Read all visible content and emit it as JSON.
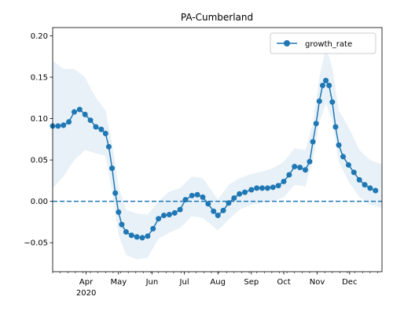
{
  "chart_data": {
    "type": "line",
    "title": "PA-Cumberland",
    "xlabel": "",
    "ylabel": "",
    "xlim": [
      "2020-03-01",
      "2020-12-31"
    ],
    "ylim": [
      -0.085,
      0.21
    ],
    "x_ticks": [
      {
        "date": "2020-04-01",
        "label": "Apr",
        "sublabel": "2020"
      },
      {
        "date": "2020-05-01",
        "label": "May"
      },
      {
        "date": "2020-06-01",
        "label": "Jun"
      },
      {
        "date": "2020-07-01",
        "label": "Jul"
      },
      {
        "date": "2020-08-01",
        "label": "Aug"
      },
      {
        "date": "2020-09-01",
        "label": "Sep"
      },
      {
        "date": "2020-10-01",
        "label": "Oct"
      },
      {
        "date": "2020-11-01",
        "label": "Nov"
      },
      {
        "date": "2020-12-01",
        "label": "Dec"
      }
    ],
    "y_ticks": [
      {
        "value": -0.05,
        "label": "−0.05"
      },
      {
        "value": 0.0,
        "label": "0.00"
      },
      {
        "value": 0.05,
        "label": "0.05"
      },
      {
        "value": 0.1,
        "label": "0.10"
      },
      {
        "value": 0.15,
        "label": "0.15"
      },
      {
        "value": 0.2,
        "label": "0.20"
      }
    ],
    "reference_line": {
      "y": 0.0,
      "style": "dashed",
      "color": "#1f77b4"
    },
    "legend": {
      "position": "top-right"
    },
    "series": [
      {
        "name": "growth_rate",
        "color": "#1f77b4",
        "marker": "circle",
        "points": [
          [
            "2020-03-01",
            0.091
          ],
          [
            "2020-03-06",
            0.091
          ],
          [
            "2020-03-11",
            0.092
          ],
          [
            "2020-03-16",
            0.096
          ],
          [
            "2020-03-21",
            0.108
          ],
          [
            "2020-03-26",
            0.111
          ],
          [
            "2020-03-31",
            0.105
          ],
          [
            "2020-04-05",
            0.098
          ],
          [
            "2020-04-10",
            0.09
          ],
          [
            "2020-04-15",
            0.087
          ],
          [
            "2020-04-19",
            0.082
          ],
          [
            "2020-04-22",
            0.066
          ],
          [
            "2020-04-25",
            0.04
          ],
          [
            "2020-04-28",
            0.01
          ],
          [
            "2020-05-01",
            -0.013
          ],
          [
            "2020-05-04",
            -0.028
          ],
          [
            "2020-05-08",
            -0.037
          ],
          [
            "2020-05-13",
            -0.041
          ],
          [
            "2020-05-18",
            -0.043
          ],
          [
            "2020-05-23",
            -0.044
          ],
          [
            "2020-05-28",
            -0.042
          ],
          [
            "2020-06-02",
            -0.033
          ],
          [
            "2020-06-07",
            -0.021
          ],
          [
            "2020-06-12",
            -0.017
          ],
          [
            "2020-06-17",
            -0.016
          ],
          [
            "2020-06-22",
            -0.014
          ],
          [
            "2020-06-27",
            -0.01
          ],
          [
            "2020-07-02",
            0.002
          ],
          [
            "2020-07-08",
            0.007
          ],
          [
            "2020-07-13",
            0.008
          ],
          [
            "2020-07-18",
            0.005
          ],
          [
            "2020-07-23",
            -0.003
          ],
          [
            "2020-07-28",
            -0.012
          ],
          [
            "2020-08-01",
            -0.017
          ],
          [
            "2020-08-06",
            -0.011
          ],
          [
            "2020-08-11",
            -0.002
          ],
          [
            "2020-08-16",
            0.004
          ],
          [
            "2020-08-21",
            0.009
          ],
          [
            "2020-08-26",
            0.011
          ],
          [
            "2020-09-01",
            0.014
          ],
          [
            "2020-09-06",
            0.016
          ],
          [
            "2020-09-11",
            0.016
          ],
          [
            "2020-09-16",
            0.016
          ],
          [
            "2020-09-21",
            0.017
          ],
          [
            "2020-09-26",
            0.019
          ],
          [
            "2020-10-01",
            0.024
          ],
          [
            "2020-10-06",
            0.032
          ],
          [
            "2020-10-11",
            0.042
          ],
          [
            "2020-10-16",
            0.041
          ],
          [
            "2020-10-21",
            0.038
          ],
          [
            "2020-10-25",
            0.048
          ],
          [
            "2020-10-28",
            0.072
          ],
          [
            "2020-10-31",
            0.094
          ],
          [
            "2020-11-03",
            0.121
          ],
          [
            "2020-11-06",
            0.14
          ],
          [
            "2020-11-09",
            0.146
          ],
          [
            "2020-11-12",
            0.14
          ],
          [
            "2020-11-15",
            0.12
          ],
          [
            "2020-11-18",
            0.09
          ],
          [
            "2020-11-21",
            0.068
          ],
          [
            "2020-11-25",
            0.054
          ],
          [
            "2020-11-30",
            0.044
          ],
          [
            "2020-12-05",
            0.035
          ],
          [
            "2020-12-10",
            0.026
          ],
          [
            "2020-12-15",
            0.02
          ],
          [
            "2020-12-20",
            0.016
          ],
          [
            "2020-12-25",
            0.013
          ]
        ],
        "band": [
          [
            "2020-03-01",
            0.016,
            0.17
          ],
          [
            "2020-03-11",
            0.03,
            0.16
          ],
          [
            "2020-03-21",
            0.05,
            0.16
          ],
          [
            "2020-03-31",
            0.062,
            0.15
          ],
          [
            "2020-04-10",
            0.058,
            0.125
          ],
          [
            "2020-04-19",
            0.055,
            0.11
          ],
          [
            "2020-04-25",
            0.012,
            0.07
          ],
          [
            "2020-05-01",
            -0.04,
            0.018
          ],
          [
            "2020-05-08",
            -0.065,
            -0.01
          ],
          [
            "2020-05-18",
            -0.07,
            -0.015
          ],
          [
            "2020-05-28",
            -0.068,
            -0.016
          ],
          [
            "2020-06-07",
            -0.045,
            0.0
          ],
          [
            "2020-06-17",
            -0.038,
            0.012
          ],
          [
            "2020-06-27",
            -0.032,
            0.016
          ],
          [
            "2020-07-08",
            -0.018,
            0.03
          ],
          [
            "2020-07-18",
            -0.02,
            0.028
          ],
          [
            "2020-08-01",
            -0.035,
            0.002
          ],
          [
            "2020-08-11",
            -0.022,
            0.02
          ],
          [
            "2020-08-21",
            -0.01,
            0.028
          ],
          [
            "2020-09-01",
            -0.004,
            0.033
          ],
          [
            "2020-09-11",
            -0.002,
            0.036
          ],
          [
            "2020-09-21",
            0.0,
            0.04
          ],
          [
            "2020-10-01",
            0.005,
            0.048
          ],
          [
            "2020-10-11",
            0.02,
            0.064
          ],
          [
            "2020-10-21",
            0.018,
            0.062
          ],
          [
            "2020-10-28",
            0.05,
            0.094
          ],
          [
            "2020-11-03",
            0.095,
            0.15
          ],
          [
            "2020-11-09",
            0.118,
            0.185
          ],
          [
            "2020-11-15",
            0.098,
            0.162
          ],
          [
            "2020-11-21",
            0.048,
            0.11
          ],
          [
            "2020-11-30",
            0.024,
            0.09
          ],
          [
            "2020-12-10",
            0.005,
            0.062
          ],
          [
            "2020-12-20",
            -0.004,
            0.05
          ],
          [
            "2020-12-31",
            -0.008,
            0.045
          ]
        ]
      }
    ]
  }
}
